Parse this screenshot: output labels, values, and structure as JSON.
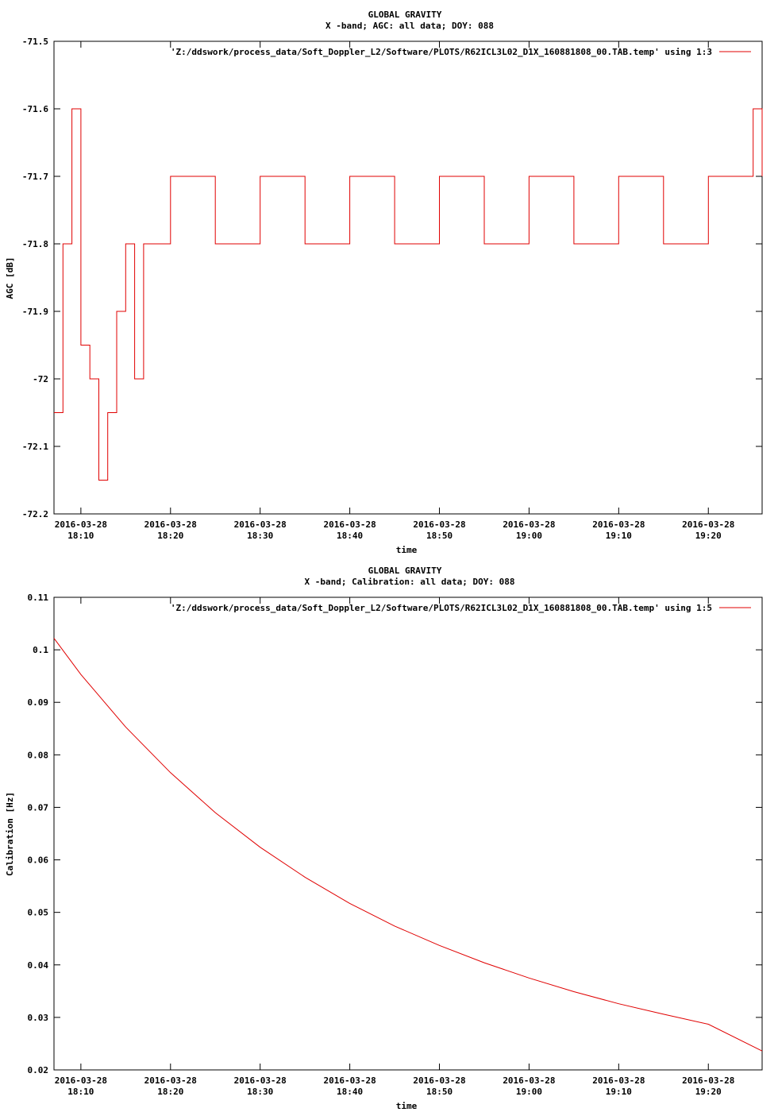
{
  "colors": {
    "series": "#e00000",
    "axis": "#000000",
    "background": "#ffffff"
  },
  "chart_data": [
    {
      "type": "line",
      "title": "GLOBAL GRAVITY",
      "subtitle": "X -band; AGC: all data; DOY: 088",
      "xlabel": "time",
      "ylabel": "AGC [dB]",
      "grid": false,
      "legend_position": "top-right",
      "x_tick_labels": [
        [
          "2016-03-28",
          "18:10"
        ],
        [
          "2016-03-28",
          "18:20"
        ],
        [
          "2016-03-28",
          "18:30"
        ],
        [
          "2016-03-28",
          "18:40"
        ],
        [
          "2016-03-28",
          "18:50"
        ],
        [
          "2016-03-28",
          "19:00"
        ],
        [
          "2016-03-28",
          "19:10"
        ],
        [
          "2016-03-28",
          "19:20"
        ]
      ],
      "xlim": [
        "2016-03-28 18:07:00",
        "2016-03-28 19:26:00"
      ],
      "ylim": [
        -72.2,
        -71.5
      ],
      "y_ticks": [
        -71.5,
        -71.6,
        -71.7,
        -71.8,
        -71.9,
        -72,
        -72.1,
        -72.2
      ],
      "y_tick_labels": [
        "-71.5",
        "-71.6",
        "-71.7",
        "-71.8",
        "-71.9",
        "-72",
        "-72.1",
        "-72.2"
      ],
      "series": [
        {
          "name": "'Z:/ddswork/process_data/Soft_Doppler_L2/Software/PLOTS/R62ICL3L02_D1X_160881808_00.TAB.temp' using 1:3",
          "style": "steps",
          "x": [
            "2016-03-28 18:07:00",
            "2016-03-28 18:08:00",
            "2016-03-28 18:09:00",
            "2016-03-28 18:10:00",
            "2016-03-28 18:11:00",
            "2016-03-28 18:12:00",
            "2016-03-28 18:13:00",
            "2016-03-28 18:14:00",
            "2016-03-28 18:15:00",
            "2016-03-28 18:16:00",
            "2016-03-28 18:17:00",
            "2016-03-28 18:20:00",
            "2016-03-28 18:25:00",
            "2016-03-28 18:30:00",
            "2016-03-28 18:35:00",
            "2016-03-28 18:40:00",
            "2016-03-28 18:45:00",
            "2016-03-28 18:50:00",
            "2016-03-28 18:55:00",
            "2016-03-28 19:00:00",
            "2016-03-28 19:05:00",
            "2016-03-28 19:10:00",
            "2016-03-28 19:15:00",
            "2016-03-28 19:20:00",
            "2016-03-28 19:25:00",
            "2016-03-28 19:26:00"
          ],
          "values": [
            -72.05,
            -71.8,
            -71.6,
            -71.95,
            -72.0,
            -72.15,
            -72.05,
            -71.9,
            -71.8,
            -72.0,
            -71.8,
            -71.7,
            -71.8,
            -71.7,
            -71.8,
            -71.7,
            -71.8,
            -71.7,
            -71.8,
            -71.7,
            -71.8,
            -71.7,
            -71.8,
            -71.7,
            -71.6,
            -71.7
          ]
        }
      ]
    },
    {
      "type": "line",
      "title": "GLOBAL GRAVITY",
      "subtitle": "X -band; Calibration: all data; DOY: 088",
      "xlabel": "time",
      "ylabel": "Calibration [Hz]",
      "grid": false,
      "legend_position": "top-right",
      "x_tick_labels": [
        [
          "2016-03-28",
          "18:10"
        ],
        [
          "2016-03-28",
          "18:20"
        ],
        [
          "2016-03-28",
          "18:30"
        ],
        [
          "2016-03-28",
          "18:40"
        ],
        [
          "2016-03-28",
          "18:50"
        ],
        [
          "2016-03-28",
          "19:00"
        ],
        [
          "2016-03-28",
          "19:10"
        ],
        [
          "2016-03-28",
          "19:20"
        ]
      ],
      "xlim": [
        "2016-03-28 18:07:00",
        "2016-03-28 19:26:00"
      ],
      "ylim": [
        0.02,
        0.11
      ],
      "y_ticks": [
        0.11,
        0.1,
        0.09,
        0.08,
        0.07,
        0.06,
        0.05,
        0.04,
        0.03,
        0.02
      ],
      "y_tick_labels": [
        "0.11",
        "0.1",
        "0.09",
        "0.08",
        "0.07",
        "0.06",
        "0.05",
        "0.04",
        "0.03",
        "0.02"
      ],
      "series": [
        {
          "name": "'Z:/ddswork/process_data/Soft_Doppler_L2/Software/PLOTS/R62ICL3L02_D1X_160881808_00.TAB.temp' using 1:5",
          "x": [
            "2016-03-28 18:07:00",
            "2016-03-28 18:10:00",
            "2016-03-28 18:15:00",
            "2016-03-28 18:20:00",
            "2016-03-28 18:25:00",
            "2016-03-28 18:30:00",
            "2016-03-28 18:35:00",
            "2016-03-28 18:40:00",
            "2016-03-28 18:45:00",
            "2016-03-28 18:50:00",
            "2016-03-28 18:55:00",
            "2016-03-28 19:00:00",
            "2016-03-28 19:05:00",
            "2016-03-28 19:10:00",
            "2016-03-28 19:15:00",
            "2016-03-28 19:20:00",
            "2016-03-28 19:26:00"
          ],
          "values": [
            0.1022,
            0.0953,
            0.0853,
            0.0766,
            0.069,
            0.0624,
            0.0567,
            0.0517,
            0.0474,
            0.0437,
            0.0404,
            0.0375,
            0.0349,
            0.0326,
            0.0306,
            0.0287,
            0.0236
          ]
        }
      ]
    }
  ]
}
